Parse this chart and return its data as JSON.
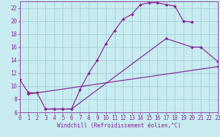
{
  "xlabel": "Windchill (Refroidissement éolien,°C)",
  "xlim": [
    0,
    23
  ],
  "ylim": [
    6,
    23
  ],
  "xticks": [
    0,
    1,
    2,
    3,
    4,
    5,
    6,
    7,
    8,
    9,
    10,
    11,
    12,
    13,
    14,
    15,
    16,
    17,
    18,
    19,
    20,
    21,
    22,
    23
  ],
  "yticks": [
    6,
    8,
    10,
    12,
    14,
    16,
    18,
    20,
    22
  ],
  "bg_color": "#c8ecf0",
  "grid_color": "#a0ccd8",
  "line_color": "#882299",
  "curve1_x": [
    0,
    1,
    2,
    3,
    4,
    5,
    6,
    7,
    8,
    9,
    10,
    11,
    12,
    13,
    14,
    15,
    16,
    17,
    18,
    19,
    20
  ],
  "curve1_y": [
    11,
    9,
    9,
    6.5,
    6.5,
    6.5,
    6.5,
    9.5,
    12,
    14,
    16.5,
    18.5,
    20.3,
    21.0,
    22.5,
    22.8,
    22.8,
    22.5,
    22.3,
    20.0,
    19.8
  ],
  "curve2_x": [
    3,
    4,
    5,
    6,
    17,
    20,
    21,
    23
  ],
  "curve2_y": [
    6.5,
    6.5,
    6.5,
    6.5,
    17.3,
    16.0,
    16.0,
    13.8
  ],
  "curve3_x": [
    1,
    23
  ],
  "curve3_y": [
    8.8,
    13.0
  ],
  "font_family": "monospace",
  "tick_fontsize": 5.5,
  "label_fontsize": 5.8,
  "linewidth": 0.9,
  "markersize": 2.2
}
